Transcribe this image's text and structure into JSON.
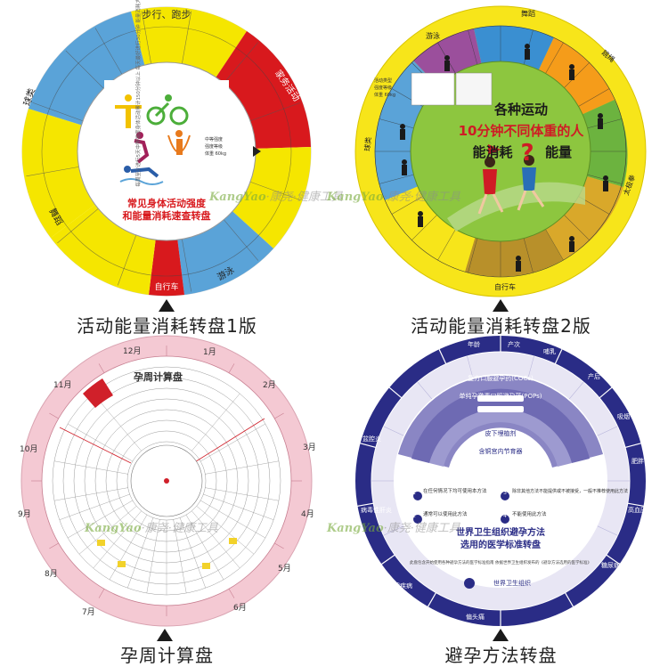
{
  "captions": {
    "panel1": "活动能量消耗转盘1版",
    "panel2": "活动能量消耗转盘2版",
    "panel3": "孕周计算盘",
    "panel4": "避孕方法转盘"
  },
  "watermark": {
    "brand_en": "KangYao",
    "brand_cn": "康尧·健康工具",
    "brand_cn_center": "康尧·健康工具"
  },
  "disk1": {
    "title_line1": "常见身体活动强度",
    "title_line2": "和能量消耗速查转盘",
    "sectors": [
      "步行、跑步",
      "家务活动",
      "游泳",
      "球类",
      "舞蹈",
      "自行车"
    ],
    "intro": "每周至少进行5天中等强度身体活动累计150分钟以上 每天最好进行30分钟 能量消耗大约为240~360千卡",
    "pointer_items": [
      "中等强度",
      "强度等级",
      "体重 60kg"
    ],
    "colors": {
      "yellow": "#f5e600",
      "red": "#d8191d",
      "blue": "#5aa3d8",
      "center": "#ffffff"
    }
  },
  "disk2": {
    "title_line1": "各种运动",
    "title_line2": "10分钟不同体重的人",
    "title_line3": "能消耗",
    "title_line4": "能量",
    "sectors_outer": [
      "游泳",
      "球类",
      "跳绳",
      "自行车",
      "太极拳",
      "舞蹈"
    ],
    "center_labels": [
      "活动类型",
      "强度等级",
      "体重 60kg"
    ],
    "colors": {
      "ring": "#f7e51a",
      "center": "#8dc63f",
      "title": "#cf1b25",
      "purple": "#9b4f9c",
      "blue": "#3a8fd1",
      "orange": "#f59c1a",
      "green": "#6cb33f"
    }
  },
  "disk3": {
    "title": "孕周计算盘",
    "months": [
      "1月",
      "2月",
      "3月",
      "4月",
      "5月",
      "6月",
      "7月",
      "8月",
      "9月",
      "10月",
      "11月",
      "12月"
    ],
    "colors": {
      "ring": "#f4c9d3",
      "inner": "#ffffff",
      "accent": "#d0202a",
      "numbers": "#333333"
    }
  },
  "disk4": {
    "title_line1": "世界卫生组织避孕方法",
    "title_line2": "选用的医学标准转盘",
    "org": "世界卫生组织",
    "footnote": "此盘包含开始使用各种避孕方法的医学标准指南 依据世界卫生组织发布的《避孕方法选用的医学标准》",
    "legend": [
      {
        "num": "1",
        "text": "在任何情况下均可使用本方法"
      },
      {
        "num": "2",
        "text": "通常可以使用此方法"
      },
      {
        "num": "3",
        "text": "除非其他方法不能提供或不被接受，一般不推荐使用此方法"
      },
      {
        "num": "4",
        "text": "不能使用此方法"
      }
    ],
    "window_labels": [
      "复方口服避孕药(COCs)",
      "单纯孕激素口服避孕药(POPs)",
      "皮下埋植剂",
      "含铜宫内节育器"
    ],
    "ring_labels": [
      "年龄",
      "产次",
      "哺乳",
      "产后",
      "吸烟",
      "肥胖",
      "高血压",
      "糖尿病",
      "偏头痛",
      "乳腺疾病",
      "病毒性肝炎",
      "盆腔炎"
    ],
    "colors": {
      "navy": "#2a2c86",
      "lavender": "#8a86c4",
      "light": "#e8e6f4",
      "center": "#ffffff"
    }
  }
}
